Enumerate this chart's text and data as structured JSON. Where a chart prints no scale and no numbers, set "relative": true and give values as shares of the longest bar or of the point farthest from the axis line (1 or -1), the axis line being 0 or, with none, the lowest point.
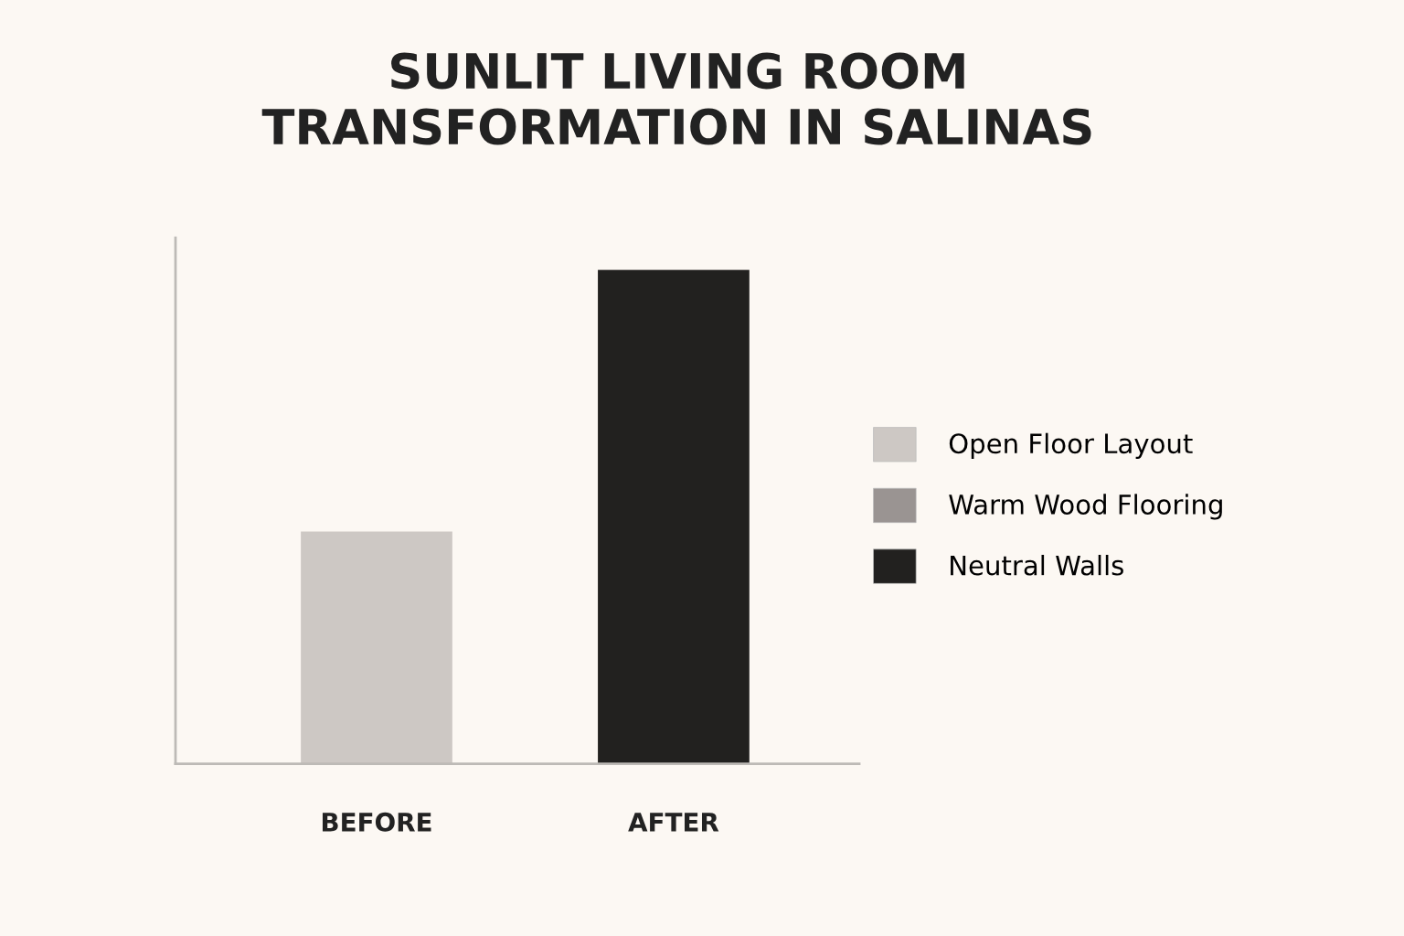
{
  "chart_data": {
    "type": "bar",
    "title": "SUNLIT LIVING ROOM\nTRANSFORMATION IN SALINAS",
    "categories": [
      "BEFORE",
      "AFTER"
    ],
    "relative": true,
    "stacked": true,
    "legend": "right",
    "grid": false,
    "series": [
      {
        "name": "Open Floor Layout",
        "color": "#cdc8c4",
        "values": [
          0.47,
          null
        ]
      },
      {
        "name": "Warm Wood Flooring",
        "color": "#9a9492",
        "values": [
          null,
          null
        ]
      },
      {
        "name": "Neutral Walls",
        "color": "#22211f",
        "values": [
          null,
          1
        ]
      }
    ]
  }
}
